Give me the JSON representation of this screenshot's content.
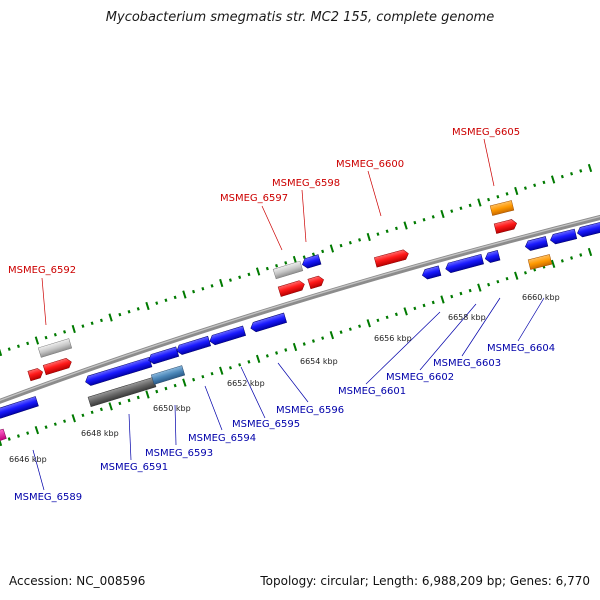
{
  "title": "Mycobacterium smegmatis str. MC2 155, complete genome",
  "footer": {
    "accession": "Accession: NC_008596",
    "summary": "Topology: circular; Length: 6,988,209 bp; Genes: 6,770"
  },
  "colors": {
    "forward_label": "#cc0000",
    "reverse_label": "#0000aa",
    "forward_gene": "#ff1a1a",
    "reverse_gene": "#1a1aff",
    "pseudo_gene": "#c8c8c8",
    "rna_gene": "#ff9900",
    "backbone": "#8c8c8c",
    "tick": "#007a00"
  },
  "scale_labels": [
    "6646 kbp",
    "6648 kbp",
    "6650 kbp",
    "6652 kbp",
    "6654 kbp",
    "6656 kbp",
    "6658 kbp",
    "6660 kbp"
  ],
  "forward_gene_labels": [
    "MSMEG_6592",
    "MSMEG_6597",
    "MSMEG_6598",
    "MSMEG_6600",
    "MSMEG_6605"
  ],
  "reverse_gene_labels": [
    "MSMEG_6589",
    "MSMEG_6591",
    "MSMEG_6593",
    "MSMEG_6594",
    "MSMEG_6595",
    "MSMEG_6596",
    "MSMEG_6601",
    "MSMEG_6602",
    "MSMEG_6603",
    "MSMEG_6604"
  ]
}
